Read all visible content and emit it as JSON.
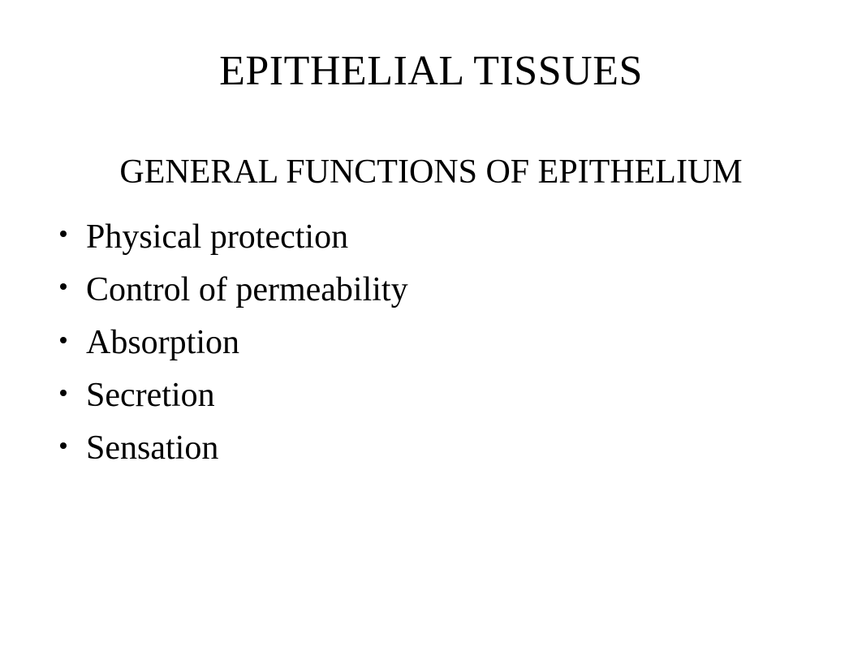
{
  "slide": {
    "title": "EPITHELIAL TISSUES",
    "subtitle": "GENERAL FUNCTIONS OF EPITHELIUM",
    "bullets": [
      "Physical protection",
      "Control of permeability",
      "Absorption",
      "Secretion",
      "Sensation"
    ]
  },
  "style": {
    "background_color": "#ffffff",
    "text_color": "#000000",
    "font_family": "Times New Roman, serif",
    "title_fontsize": 52,
    "subtitle_fontsize": 42,
    "bullet_fontsize": 42,
    "bullet_marker_color": "#000000",
    "bullet_marker_size": 8,
    "slide_width": 1062,
    "slide_height": 797
  }
}
